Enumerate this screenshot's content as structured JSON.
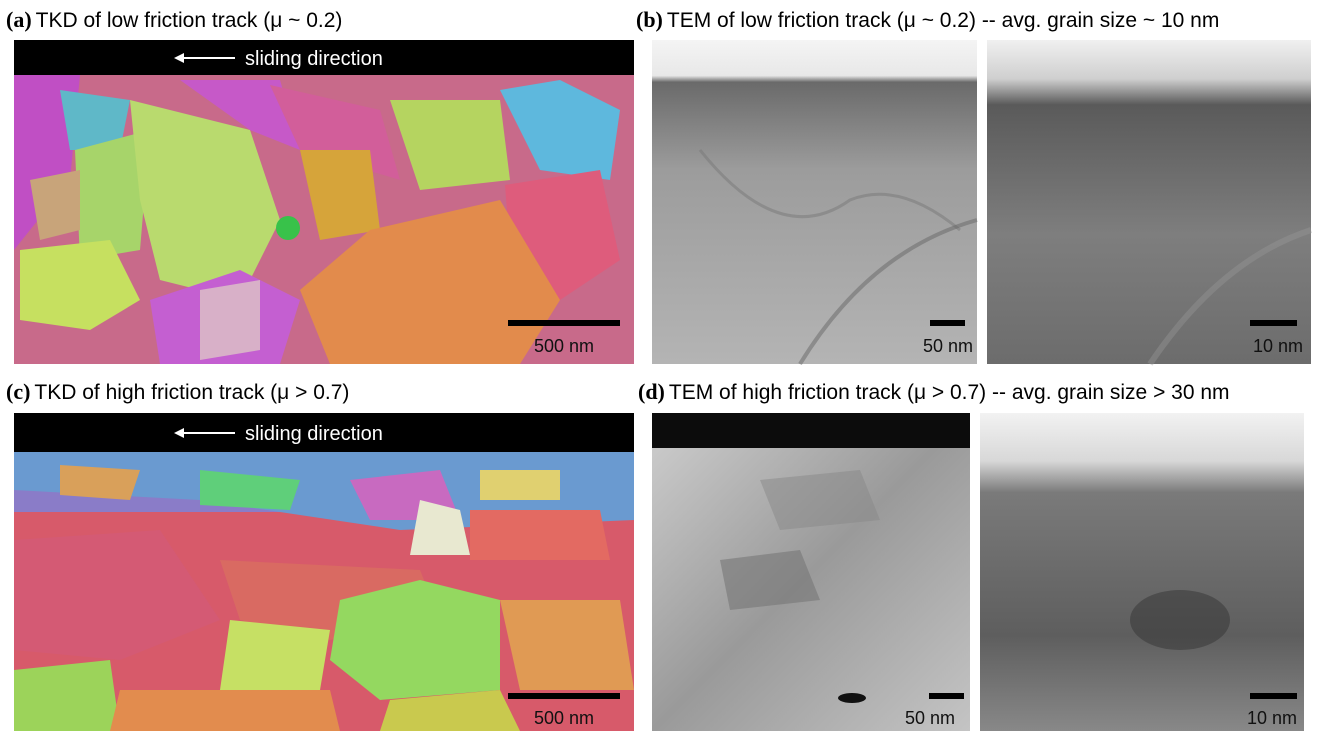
{
  "panels": [
    {
      "label": "(a)",
      "title": "TKD of low friction track (μ ~ 0.2)",
      "banner": "sliding direction",
      "scale_bars": [
        "500 nm"
      ]
    },
    {
      "label": "(b)",
      "title": "TEM of low friction track (μ ~ 0.2) -- avg. grain size ~ 10 nm",
      "scale_bars": [
        "50 nm",
        "10 nm"
      ]
    },
    {
      "label": "(c)",
      "title": "TKD of high friction track (μ > 0.7)",
      "banner": "sliding direction",
      "scale_bars": [
        "500 nm"
      ]
    },
    {
      "label": "(d)",
      "title": "TEM of high friction track (μ > 0.7) -- avg. grain size > 30 nm",
      "scale_bars": [
        "50 nm",
        "10 nm"
      ]
    }
  ]
}
